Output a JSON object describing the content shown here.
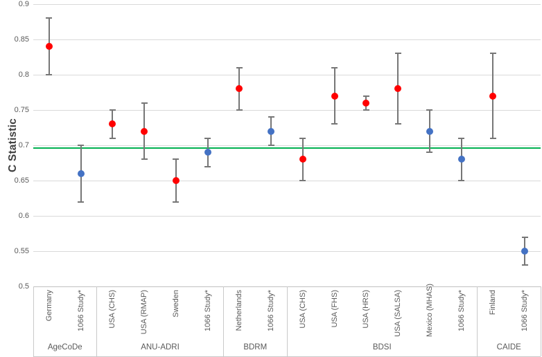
{
  "figure_title": "",
  "chart_data": {
    "type": "scatter",
    "subtype": "error-bar-forest-plot",
    "title": "",
    "xlabel": "",
    "ylabel": "C Statistic",
    "ylim": [
      0.5,
      0.9
    ],
    "yticks": [
      0.9,
      0.85,
      0.8,
      0.75,
      0.7,
      0.65,
      0.6,
      0.55,
      0.5
    ],
    "grid": true,
    "legend": "none",
    "reference_line": {
      "value": 0.696,
      "color": "#00B050"
    },
    "series_colors": {
      "red": "#FF0000",
      "blue": "#4472C4"
    },
    "groups": [
      {
        "name": "AgeCoDe",
        "points": [
          {
            "label": "Germany",
            "value": 0.84,
            "ci": [
              0.8,
              0.88
            ],
            "series": "red"
          },
          {
            "label": "1066 Study*",
            "value": 0.66,
            "ci": [
              0.62,
              0.7
            ],
            "series": "blue"
          }
        ]
      },
      {
        "name": "ANU-ADRI",
        "points": [
          {
            "label": "USA (CHS)",
            "value": 0.73,
            "ci": [
              0.71,
              0.75
            ],
            "series": "red"
          },
          {
            "label": "USA (RMAP)",
            "value": 0.72,
            "ci": [
              0.68,
              0.76
            ],
            "series": "red"
          },
          {
            "label": "Sweden",
            "value": 0.65,
            "ci": [
              0.62,
              0.68
            ],
            "series": "red"
          },
          {
            "label": "1066 Study*",
            "value": 0.69,
            "ci": [
              0.67,
              0.71
            ],
            "series": "blue"
          }
        ]
      },
      {
        "name": "BDRM",
        "points": [
          {
            "label": "Netherlands",
            "value": 0.78,
            "ci": [
              0.75,
              0.81
            ],
            "series": "red"
          },
          {
            "label": "1066 Study*",
            "value": 0.72,
            "ci": [
              0.7,
              0.74
            ],
            "series": "blue"
          }
        ]
      },
      {
        "name": "BDSI",
        "points": [
          {
            "label": "USA (CHS)",
            "value": 0.68,
            "ci": [
              0.65,
              0.71
            ],
            "series": "red"
          },
          {
            "label": "USA (FHS)",
            "value": 0.77,
            "ci": [
              0.73,
              0.81
            ],
            "series": "red"
          },
          {
            "label": "USA (HRS)",
            "value": 0.76,
            "ci": [
              0.75,
              0.77
            ],
            "series": "red"
          },
          {
            "label": "USA (SALSA)",
            "value": 0.78,
            "ci": [
              0.73,
              0.83
            ],
            "series": "red"
          },
          {
            "label": "Mexico (MHAS)",
            "value": 0.72,
            "ci": [
              0.69,
              0.75
            ],
            "series": "blue"
          },
          {
            "label": "1066 Study*",
            "value": 0.68,
            "ci": [
              0.65,
              0.71
            ],
            "series": "blue"
          }
        ]
      },
      {
        "name": "CAIDE",
        "points": [
          {
            "label": "Finland",
            "value": 0.77,
            "ci": [
              0.71,
              0.83
            ],
            "series": "red"
          },
          {
            "label": "1066 Study*",
            "value": 0.55,
            "ci": [
              0.53,
              0.57
            ],
            "series": "blue"
          }
        ]
      }
    ],
    "style_colors": {
      "gridline": "#d9d9d9",
      "axis_line": "#bfbfbf",
      "separator": "#c9c9c9",
      "error_bar": "#767676",
      "tick_text": "#595959",
      "axis_title_text": "#404040"
    }
  }
}
